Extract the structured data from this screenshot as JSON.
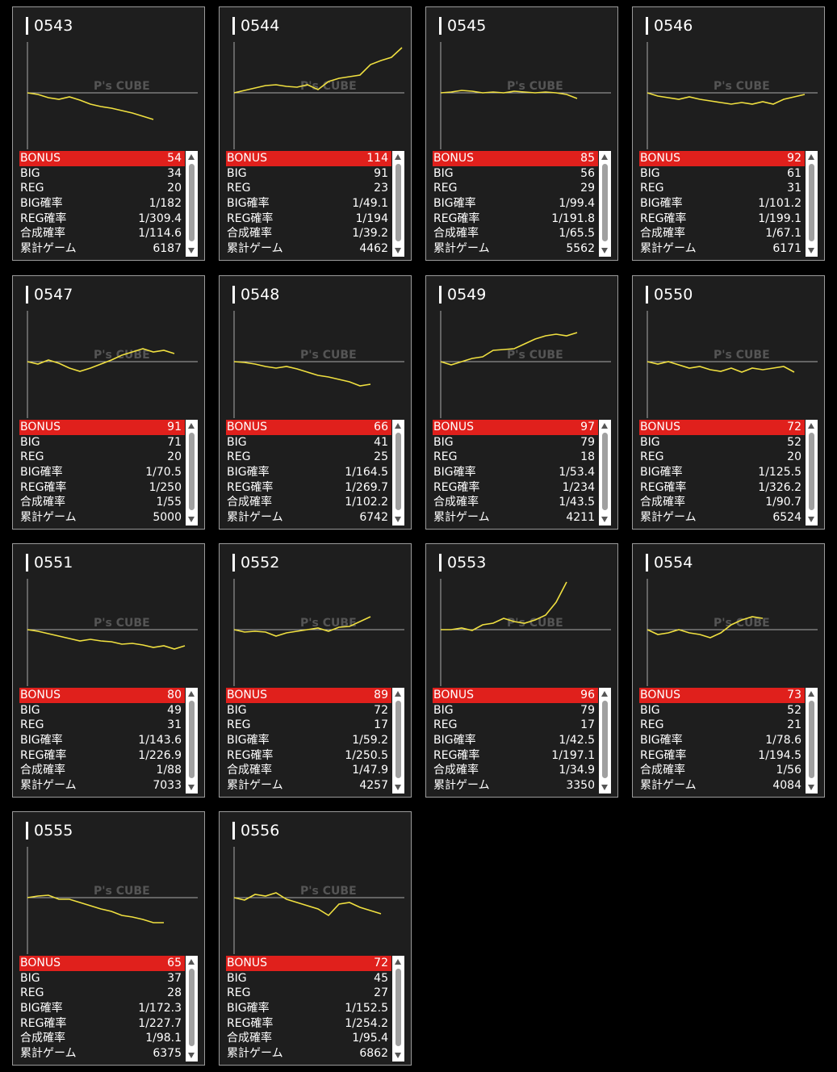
{
  "watermark": "P's CUBE",
  "stat_labels": [
    "BONUS",
    "BIG",
    "REG",
    "BIG確率",
    "REG確率",
    "合成確率",
    "累計ゲーム"
  ],
  "machines": [
    {
      "id": "0543",
      "graph": [
        0,
        -2,
        -6,
        -8,
        -5,
        -9,
        -14,
        -17,
        -19,
        -22,
        -25,
        -29,
        -33
      ],
      "stats": [
        54,
        34,
        20,
        "1/182",
        "1/309.4",
        "1/114.6",
        6187
      ]
    },
    {
      "id": "0544",
      "graph": [
        0,
        3,
        6,
        9,
        10,
        8,
        7,
        10,
        4,
        14,
        18,
        20,
        22,
        35,
        40,
        44,
        56
      ],
      "stats": [
        114,
        91,
        23,
        "1/49.1",
        "1/194",
        "1/39.2",
        4462
      ]
    },
    {
      "id": "0545",
      "graph": [
        0,
        1,
        3,
        2,
        0,
        1,
        0,
        2,
        1,
        0,
        1,
        0,
        -2,
        -7
      ],
      "stats": [
        85,
        56,
        29,
        "1/99.4",
        "1/191.8",
        "1/65.5",
        5562
      ]
    },
    {
      "id": "0546",
      "graph": [
        0,
        -4,
        -6,
        -8,
        -5,
        -8,
        -10,
        -12,
        -14,
        -12,
        -14,
        -11,
        -14,
        -8,
        -5,
        -2
      ],
      "stats": [
        92,
        61,
        31,
        "1/101.2",
        "1/199.1",
        "1/67.1",
        6171
      ]
    },
    {
      "id": "0547",
      "graph": [
        0,
        -3,
        2,
        -2,
        -8,
        -12,
        -8,
        -3,
        2,
        8,
        12,
        16,
        12,
        14,
        10
      ],
      "stats": [
        91,
        71,
        20,
        "1/70.5",
        "1/250",
        "1/55",
        5000
      ]
    },
    {
      "id": "0548",
      "graph": [
        0,
        -1,
        -3,
        -6,
        -8,
        -6,
        -9,
        -13,
        -17,
        -19,
        -22,
        -25,
        -30,
        -28
      ],
      "stats": [
        66,
        41,
        25,
        "1/164.5",
        "1/269.7",
        "1/102.2",
        6742
      ]
    },
    {
      "id": "0549",
      "graph": [
        0,
        -4,
        0,
        4,
        6,
        14,
        15,
        16,
        22,
        28,
        32,
        34,
        32,
        36
      ],
      "stats": [
        97,
        79,
        18,
        "1/53.4",
        "1/234",
        "1/43.5",
        4211
      ]
    },
    {
      "id": "0550",
      "graph": [
        0,
        -3,
        0,
        -4,
        -8,
        -6,
        -10,
        -12,
        -8,
        -13,
        -8,
        -10,
        -8,
        -6,
        -13
      ],
      "stats": [
        72,
        52,
        20,
        "1/125.5",
        "1/326.2",
        "1/90.7",
        6524
      ]
    },
    {
      "id": "0551",
      "graph": [
        0,
        -2,
        -5,
        -8,
        -11,
        -14,
        -12,
        -14,
        -15,
        -18,
        -17,
        -19,
        -22,
        -20,
        -24,
        -20
      ],
      "stats": [
        80,
        49,
        31,
        "1/143.6",
        "1/226.9",
        "1/88",
        7033
      ]
    },
    {
      "id": "0552",
      "graph": [
        0,
        -3,
        -2,
        -3,
        -8,
        -4,
        -2,
        0,
        2,
        -2,
        3,
        4,
        10,
        16
      ],
      "stats": [
        89,
        72,
        17,
        "1/59.2",
        "1/250.5",
        "1/47.9",
        4257
      ]
    },
    {
      "id": "0553",
      "graph": [
        0,
        0,
        2,
        -1,
        6,
        8,
        14,
        10,
        8,
        12,
        18,
        34,
        59
      ],
      "stats": [
        96,
        79,
        17,
        "1/42.5",
        "1/197.1",
        "1/34.9",
        3350
      ]
    },
    {
      "id": "0554",
      "graph": [
        0,
        -6,
        -4,
        0,
        -4,
        -6,
        -10,
        -4,
        6,
        12,
        16,
        14
      ],
      "stats": [
        73,
        52,
        21,
        "1/78.6",
        "1/194.5",
        "1/56",
        4084
      ]
    },
    {
      "id": "0555",
      "graph": [
        0,
        2,
        3,
        -2,
        -2,
        -6,
        -10,
        -14,
        -17,
        -22,
        -24,
        -27,
        -31,
        -31
      ],
      "stats": [
        65,
        37,
        28,
        "1/172.3",
        "1/227.7",
        "1/98.1",
        6375
      ]
    },
    {
      "id": "0556",
      "graph": [
        0,
        -3,
        4,
        2,
        6,
        -2,
        -6,
        -10,
        -14,
        -22,
        -8,
        -6,
        -12,
        -16,
        -20
      ],
      "stats": [
        72,
        45,
        27,
        "1/152.5",
        "1/254.2",
        "1/95.4",
        6862
      ]
    }
  ]
}
